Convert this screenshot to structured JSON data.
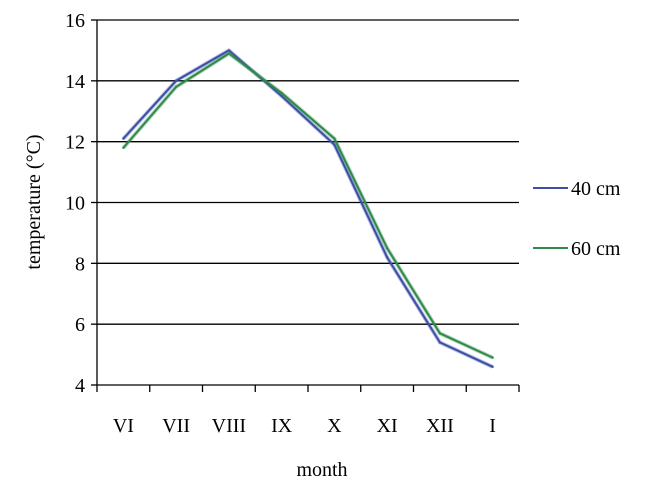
{
  "chart_data": {
    "type": "line",
    "categories": [
      "VI",
      "VII",
      "VIII",
      "IX",
      "X",
      "XI",
      "XII",
      "I"
    ],
    "xlabel": "month",
    "ylabel": "temperature (°C)",
    "ylim": [
      4,
      16
    ],
    "yticks": [
      4,
      6,
      8,
      10,
      12,
      14,
      16
    ],
    "grid": "horizontal",
    "legend_position": "right",
    "series": [
      {
        "name": "40 cm",
        "color": "#3b4ea8",
        "values": [
          12.1,
          14.0,
          15.0,
          13.5,
          11.9,
          8.2,
          5.4,
          4.6
        ]
      },
      {
        "name": "60 cm",
        "color": "#2e8a4a",
        "values": [
          11.8,
          13.8,
          14.9,
          13.6,
          12.1,
          8.5,
          5.7,
          4.9
        ]
      }
    ]
  }
}
